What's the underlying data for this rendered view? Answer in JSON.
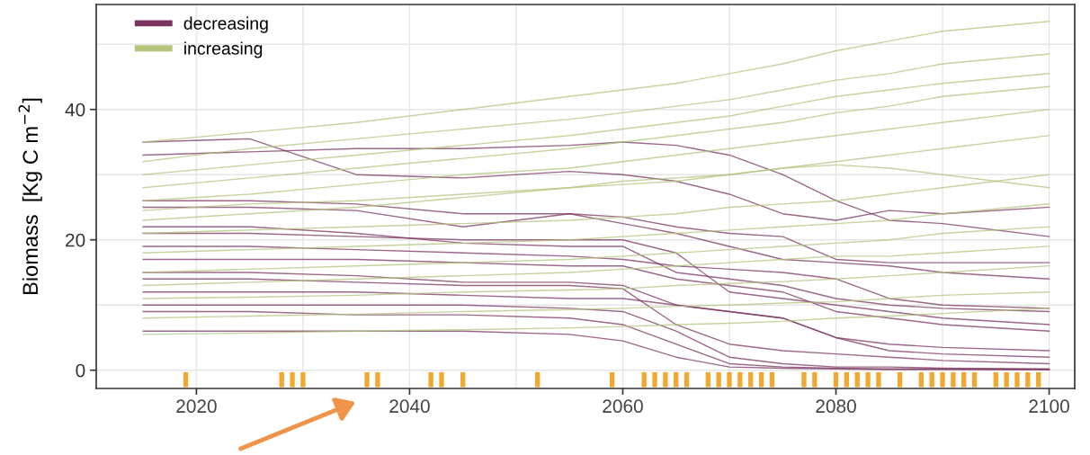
{
  "chart_data": {
    "type": "line",
    "ylabel": "Biomass  [Kg C m$^{−2}$]",
    "legend": "top left",
    "grid": true,
    "xlim": [
      2010.6,
      2102.4
    ],
    "ylim": [
      -2.8,
      56.1
    ],
    "xticks": [
      2020,
      {
        "value": 2030,
        "label": null
      },
      2040,
      {
        "value": 2050,
        "label": null
      },
      2060,
      {
        "value": 2070,
        "label": null
      },
      2080,
      {
        "value": 2090,
        "label": null
      },
      2100
    ],
    "yticks": [
      0,
      {
        "value": 10,
        "label": null
      },
      20,
      {
        "value": 30,
        "label": null
      },
      40,
      {
        "value": 50,
        "label": null
      }
    ],
    "x": [
      2015,
      2025,
      2035,
      2045,
      2055,
      2060,
      2065,
      2070,
      2075,
      2080,
      2085,
      2090,
      2100
    ],
    "series": [
      {
        "name": "decreasing",
        "color": "#7b3460",
        "values": [
          35,
          35.5,
          30,
          29.5,
          30.5,
          30,
          29,
          27,
          24,
          23,
          24.5,
          24,
          25
        ]
      },
      {
        "color": "#7b3460",
        "values": [
          33,
          33.5,
          34,
          34,
          34.5,
          35,
          34.5,
          33,
          30,
          26,
          23,
          22.5,
          20.5
        ]
      },
      {
        "color": "#7b3460",
        "values": [
          26,
          26,
          25.5,
          24,
          24,
          23.5,
          22,
          21,
          20.5,
          17,
          16.5,
          16.5,
          16.5
        ]
      },
      {
        "color": "#7b3460",
        "values": [
          25,
          25,
          24.5,
          22,
          24,
          22.5,
          21,
          19,
          17,
          16.5,
          16,
          15,
          14
        ]
      },
      {
        "color": "#7b3460",
        "values": [
          22,
          22,
          21,
          19.5,
          19,
          19,
          15,
          14,
          13,
          11,
          10,
          9.5,
          9
        ]
      },
      {
        "color": "#7b3460",
        "values": [
          21,
          21,
          20.5,
          20,
          20,
          20,
          18,
          12,
          11,
          10,
          9,
          8,
          7
        ]
      },
      {
        "color": "#7b3460",
        "values": [
          19,
          19,
          18.5,
          18,
          17.5,
          17,
          16,
          15.5,
          15,
          14,
          11,
          10,
          9.5
        ]
      },
      {
        "color": "#7b3460",
        "values": [
          17,
          17,
          17,
          16.5,
          16,
          16,
          14,
          13,
          12,
          9,
          8,
          7,
          6
        ]
      },
      {
        "color": "#7b3460",
        "values": [
          15,
          15,
          14.5,
          13.5,
          13.5,
          13,
          10,
          9,
          8,
          5,
          4,
          3.5,
          3
        ]
      },
      {
        "color": "#7b3460",
        "values": [
          14,
          14,
          13.5,
          13,
          13,
          12.5,
          7,
          4,
          3,
          2.5,
          2,
          1.5,
          1
        ]
      },
      {
        "color": "#7b3460",
        "values": [
          12,
          12,
          12,
          11.5,
          11,
          11,
          10,
          9,
          8,
          5,
          3,
          2.5,
          2
        ]
      },
      {
        "color": "#7b3460",
        "values": [
          10,
          10,
          10,
          10,
          9.5,
          9,
          6,
          2,
          1,
          0.5,
          0.5,
          0.3,
          0.2
        ]
      },
      {
        "color": "#7b3460",
        "values": [
          9,
          9,
          8.5,
          8.5,
          8,
          7,
          4,
          1,
          0.5,
          0.3,
          0.2,
          0.2,
          0.1
        ]
      },
      {
        "color": "#7b3460",
        "values": [
          6,
          6,
          6,
          6,
          5.5,
          4.5,
          2,
          0.5,
          0.3,
          0.2,
          0.1,
          0.1,
          0.1
        ]
      },
      {
        "name": "increasing",
        "color": "#b3c47c",
        "values": [
          35,
          36.5,
          38,
          40,
          42,
          43,
          44,
          45.5,
          47,
          49,
          50.5,
          52,
          53.5
        ]
      },
      {
        "color": "#b3c47c",
        "values": [
          32,
          34,
          35.5,
          37,
          38.5,
          39.5,
          40.5,
          41.5,
          43,
          44.5,
          45.5,
          47,
          48.5
        ]
      },
      {
        "color": "#b3c47c",
        "values": [
          30,
          31.5,
          33,
          34.5,
          36,
          37,
          38,
          39,
          40.5,
          42,
          43,
          44,
          45.5
        ]
      },
      {
        "color": "#b3c47c",
        "values": [
          28,
          29.5,
          31,
          32.5,
          34,
          35,
          36,
          37,
          38,
          39.5,
          40.5,
          42,
          43.5
        ]
      },
      {
        "color": "#b3c47c",
        "values": [
          26,
          27,
          28.5,
          30,
          31,
          32,
          33,
          34,
          35,
          36,
          37,
          38,
          40
        ]
      },
      {
        "color": "#b3c47c",
        "values": [
          24.5,
          25.5,
          26,
          27,
          28,
          29,
          29.5,
          30,
          31,
          31.5,
          31,
          30,
          28
        ]
      },
      {
        "color": "#b3c47c",
        "values": [
          23,
          24,
          25,
          26.5,
          28,
          28.5,
          29,
          30,
          31,
          32,
          33,
          34,
          36
        ]
      },
      {
        "color": "#b3c47c",
        "values": [
          21,
          21.5,
          22,
          22.5,
          23,
          23.5,
          24,
          25,
          25.5,
          26,
          27,
          28,
          30
        ]
      },
      {
        "color": "#b3c47c",
        "values": [
          18,
          18.5,
          19,
          19.5,
          20,
          20.5,
          21,
          21.5,
          22,
          22.5,
          23,
          24,
          25.5
        ]
      },
      {
        "color": "#b3c47c",
        "values": [
          15,
          15.5,
          16,
          16.5,
          17,
          17.5,
          18,
          18.5,
          19,
          19.5,
          20,
          21,
          22
        ]
      },
      {
        "color": "#b3c47c",
        "values": [
          13,
          13.5,
          14,
          14.5,
          15,
          15.5,
          16,
          16.5,
          17,
          17.5,
          17.5,
          18,
          19
        ]
      },
      {
        "color": "#b3c47c",
        "values": [
          11,
          11.2,
          11.5,
          12,
          12.3,
          12.5,
          13,
          13.3,
          13.6,
          14,
          14.5,
          15,
          16
        ]
      },
      {
        "color": "#b3c47c",
        "values": [
          8,
          8.3,
          8.6,
          9,
          9.3,
          9.5,
          9.8,
          10,
          10.3,
          10.5,
          11,
          11.5,
          12
        ]
      },
      {
        "color": "#b3c47c",
        "values": [
          5.5,
          5.7,
          6,
          6.2,
          6.5,
          6.7,
          7,
          7.2,
          7.5,
          8,
          8.3,
          8.7,
          9.5
        ]
      },
      {
        "type": "bar",
        "color": "#f0a830",
        "base": [
          -2.6,
          -2.6,
          -2.6,
          -2.6,
          -2.6,
          -2.6,
          -2.6,
          -2.6,
          -2.6,
          -2.6,
          -2.6,
          -2.6,
          -2.6,
          -2.6,
          -2.6,
          -2.6,
          -2.6,
          -2.6,
          -2.6,
          -2.6,
          -2.6,
          -2.6,
          -2.6,
          -2.6,
          -2.6,
          -2.6,
          -2.6,
          -2.6,
          -2.6,
          -2.6,
          -2.6,
          -2.6,
          -2.6,
          -2.6,
          -2.6,
          -2.6,
          -2.6,
          -2.6,
          -2.6,
          -2.6,
          -2.6,
          -2.6
        ],
        "x": [
          2019,
          2028,
          2029,
          2030,
          2036,
          2037,
          2042,
          2043,
          2045,
          2052,
          2059,
          2062,
          2063,
          2064,
          2065,
          2066,
          2068,
          2069,
          2070,
          2071,
          2072,
          2073,
          2074,
          2077,
          2078,
          2080,
          2081,
          2082,
          2083,
          2084,
          2086,
          2088,
          2089,
          2090,
          2091,
          2092,
          2093,
          2095,
          2096,
          2097,
          2098,
          2099
        ],
        "values": [
          2.3,
          2.3,
          2.3,
          2.3,
          2.3,
          2.3,
          2.3,
          2.3,
          2.3,
          2.3,
          2.3,
          2.3,
          2.3,
          2.3,
          2.3,
          2.3,
          2.3,
          2.3,
          2.3,
          2.3,
          2.3,
          2.3,
          2.3,
          2.3,
          2.3,
          2.3,
          2.3,
          2.3,
          2.3,
          2.3,
          2.3,
          2.3,
          2.3,
          2.3,
          2.3,
          2.3,
          2.3,
          2.3,
          2.3,
          2.3,
          2.3,
          2.3
        ]
      }
    ]
  }
}
